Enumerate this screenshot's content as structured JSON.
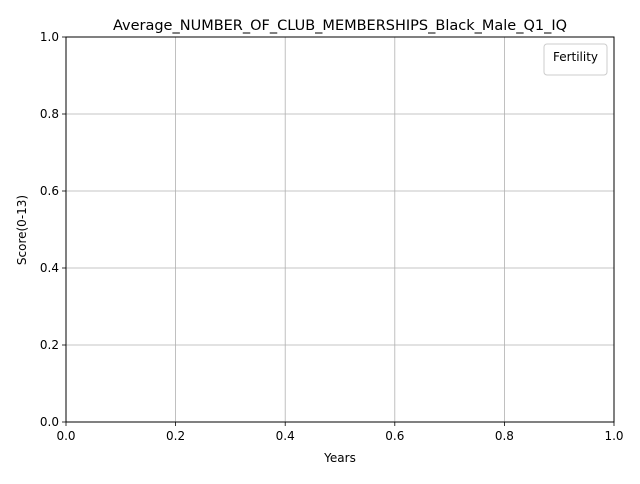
{
  "chart_data": {
    "type": "line",
    "title": "Average_NUMBER_OF_CLUB_MEMBERSHIPS_Black_Male_Q1_IQ",
    "xlabel": "Years",
    "ylabel": "Score(0-13)",
    "xlim": [
      0.0,
      1.0
    ],
    "ylim": [
      0.0,
      1.0
    ],
    "x_ticks": [
      0.0,
      0.2,
      0.4,
      0.6,
      0.8,
      1.0
    ],
    "x_tick_labels": [
      "0.0",
      "0.2",
      "0.4",
      "0.6",
      "0.8",
      "1.0"
    ],
    "y_ticks": [
      0.0,
      0.2,
      0.4,
      0.6,
      0.8,
      1.0
    ],
    "y_tick_labels": [
      "0.0",
      "0.2",
      "0.4",
      "0.6",
      "0.8",
      "1.0"
    ],
    "grid": true,
    "legend": {
      "title": "Fertility",
      "location": "top-right",
      "entries": []
    },
    "series": []
  },
  "colors": {
    "background": "#ffffff",
    "axis": "#000000",
    "grid": "#b0b0b0",
    "legend_border": "#cccccc"
  }
}
